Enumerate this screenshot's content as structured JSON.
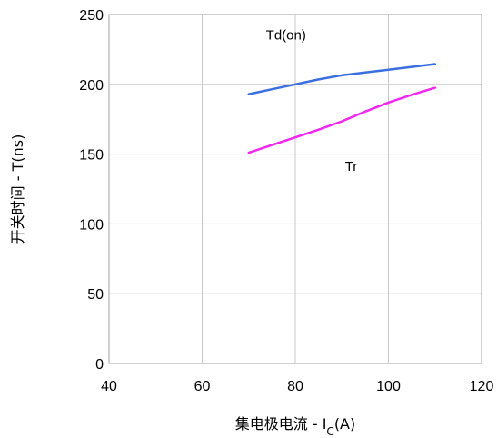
{
  "chart_data": {
    "type": "line",
    "title": "",
    "xlabel": {
      "main": "集电极电流 - I",
      "sub": "C",
      "suffix": "(A)"
    },
    "ylabel": "开关时间 - T(ns)",
    "xlim": [
      40,
      120
    ],
    "ylim": [
      0,
      250
    ],
    "xticks": [
      40,
      60,
      80,
      100,
      120
    ],
    "yticks": [
      0,
      50,
      100,
      150,
      200,
      250
    ],
    "grid": true,
    "legend": "none",
    "series": [
      {
        "name": "Td(on)",
        "color": "#3a6fe0",
        "x": [
          70,
          75,
          80,
          85,
          90,
          95,
          100,
          105,
          110
        ],
        "y": [
          193,
          196.5,
          200,
          203.5,
          206.5,
          208.5,
          210.5,
          212.5,
          214.5
        ]
      },
      {
        "name": "Tr",
        "color": "#f028f0",
        "x": [
          70,
          75,
          80,
          85,
          90,
          95,
          100,
          105,
          110
        ],
        "y": [
          151,
          156.5,
          162,
          167.5,
          173.5,
          180.5,
          187,
          192.5,
          197.5
        ]
      }
    ]
  }
}
